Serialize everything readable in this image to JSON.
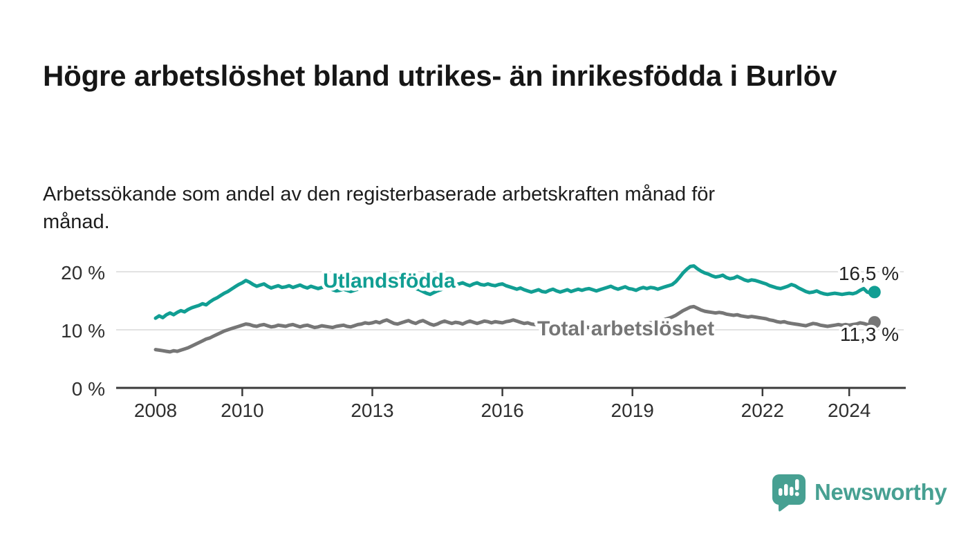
{
  "title": "Högre arbetslöshet bland utrikes- än inrikesfödda i Burlöv",
  "subtitle": "Arbetssökande som andel av den registerbaserade arbetskraften månad för månad.",
  "branding": {
    "logo_text": "Newsworthy"
  },
  "colors": {
    "utlandsfodda": "#119e93",
    "total": "#767676",
    "grid": "#d9d9d9",
    "axis": "#3a3a3a",
    "axis_text": "#2f2f2f",
    "value_text": "#222222",
    "brand": "#47a092"
  },
  "chart_data": {
    "type": "line",
    "title": "Högre arbetslöshet bland utrikes- än inrikesfödda i Burlöv",
    "subtitle": "Arbetssökande som andel av den registerbaserade arbetskraften månad för månad.",
    "x_unit": "month",
    "x_start": "2008-01",
    "x_end": "2024-08",
    "xticks": [
      2008,
      2010,
      2013,
      2016,
      2019,
      2022,
      2024
    ],
    "yticks": [
      0,
      10,
      20
    ],
    "ytick_labels": [
      "0 %",
      "10 %",
      "20 %"
    ],
    "ylim": [
      0,
      22.5
    ],
    "grid": "horizontal",
    "legend_position": "inline-labels",
    "series": [
      {
        "name": "Utlandsfödda",
        "color": "#119e93",
        "end_label": "16,5 %",
        "end_value": 16.5,
        "values": [
          12.0,
          12.4,
          12.1,
          12.6,
          12.9,
          12.6,
          13.0,
          13.3,
          13.1,
          13.5,
          13.8,
          14.0,
          14.2,
          14.5,
          14.3,
          14.8,
          15.2,
          15.5,
          15.9,
          16.3,
          16.6,
          17.0,
          17.4,
          17.8,
          18.1,
          18.5,
          18.2,
          17.8,
          17.5,
          17.7,
          17.9,
          17.5,
          17.2,
          17.4,
          17.6,
          17.3,
          17.4,
          17.6,
          17.3,
          17.5,
          17.7,
          17.4,
          17.2,
          17.5,
          17.3,
          17.1,
          17.3,
          17.5,
          17.2,
          16.9,
          16.7,
          16.8,
          17.0,
          16.8,
          16.6,
          16.8,
          17.0,
          17.2,
          17.4,
          17.3,
          17.4,
          17.2,
          17.3,
          17.5,
          17.3,
          17.2,
          17.4,
          17.3,
          17.1,
          17.2,
          17.4,
          17.3,
          17.1,
          16.9,
          16.6,
          16.3,
          16.1,
          16.4,
          16.7,
          16.9,
          17.2,
          17.4,
          17.6,
          17.8,
          17.9,
          18.1,
          17.8,
          17.6,
          17.9,
          18.1,
          17.8,
          17.7,
          17.9,
          17.7,
          17.6,
          17.8,
          17.9,
          17.6,
          17.4,
          17.2,
          17.0,
          17.2,
          16.9,
          16.7,
          16.5,
          16.7,
          16.9,
          16.6,
          16.5,
          16.8,
          17.0,
          16.7,
          16.5,
          16.7,
          16.9,
          16.6,
          16.8,
          17.0,
          16.8,
          17.0,
          17.1,
          16.9,
          16.7,
          16.9,
          17.1,
          17.3,
          17.5,
          17.2,
          17.0,
          17.2,
          17.4,
          17.1,
          17.0,
          16.8,
          17.1,
          17.3,
          17.1,
          17.3,
          17.2,
          17.0,
          17.2,
          17.4,
          17.6,
          17.8,
          18.3,
          19.0,
          19.8,
          20.4,
          20.9,
          21.0,
          20.5,
          20.1,
          19.8,
          19.6,
          19.3,
          19.1,
          19.2,
          19.4,
          19.0,
          18.8,
          18.9,
          19.2,
          18.9,
          18.6,
          18.4,
          18.6,
          18.5,
          18.3,
          18.1,
          17.9,
          17.6,
          17.4,
          17.2,
          17.1,
          17.3,
          17.5,
          17.8,
          17.6,
          17.2,
          16.9,
          16.6,
          16.4,
          16.5,
          16.7,
          16.4,
          16.2,
          16.1,
          16.2,
          16.3,
          16.2,
          16.1,
          16.2,
          16.3,
          16.2,
          16.4,
          16.8,
          17.1,
          16.5,
          16.3,
          16.5
        ]
      },
      {
        "name": "Total arbetslöshet",
        "color": "#767676",
        "end_label": "11,3 %",
        "end_value": 11.3,
        "values": [
          6.6,
          6.5,
          6.4,
          6.3,
          6.2,
          6.4,
          6.3,
          6.5,
          6.7,
          6.9,
          7.2,
          7.5,
          7.8,
          8.1,
          8.4,
          8.6,
          8.9,
          9.2,
          9.5,
          9.8,
          10.0,
          10.2,
          10.4,
          10.6,
          10.8,
          11.0,
          10.9,
          10.7,
          10.6,
          10.8,
          10.9,
          10.7,
          10.5,
          10.6,
          10.8,
          10.7,
          10.6,
          10.8,
          10.9,
          10.7,
          10.5,
          10.7,
          10.8,
          10.6,
          10.4,
          10.5,
          10.7,
          10.6,
          10.5,
          10.4,
          10.6,
          10.7,
          10.8,
          10.6,
          10.5,
          10.7,
          10.9,
          11.0,
          11.2,
          11.1,
          11.2,
          11.4,
          11.2,
          11.5,
          11.7,
          11.4,
          11.1,
          11.0,
          11.2,
          11.4,
          11.6,
          11.3,
          11.1,
          11.4,
          11.6,
          11.3,
          11.0,
          10.8,
          11.0,
          11.3,
          11.5,
          11.3,
          11.1,
          11.3,
          11.2,
          11.0,
          11.3,
          11.5,
          11.3,
          11.1,
          11.3,
          11.5,
          11.4,
          11.2,
          11.4,
          11.3,
          11.2,
          11.4,
          11.5,
          11.7,
          11.5,
          11.3,
          11.1,
          11.2,
          11.0,
          10.9,
          11.0,
          10.8,
          10.7,
          10.9,
          10.8,
          10.6,
          10.5,
          10.7,
          10.6,
          10.4,
          10.5,
          10.7,
          10.6,
          10.5,
          10.4,
          10.6,
          10.5,
          10.7,
          10.6,
          10.8,
          10.7,
          10.5,
          10.6,
          10.8,
          10.7,
          10.6,
          10.7,
          10.8,
          10.9,
          11.0,
          11.1,
          11.2,
          11.3,
          11.4,
          11.6,
          11.8,
          12.0,
          12.2,
          12.5,
          12.9,
          13.3,
          13.6,
          13.9,
          14.0,
          13.7,
          13.4,
          13.2,
          13.1,
          13.0,
          12.9,
          13.0,
          12.9,
          12.7,
          12.6,
          12.5,
          12.6,
          12.4,
          12.3,
          12.2,
          12.3,
          12.2,
          12.1,
          12.0,
          11.9,
          11.7,
          11.6,
          11.4,
          11.3,
          11.4,
          11.2,
          11.1,
          11.0,
          10.9,
          10.8,
          10.7,
          10.9,
          11.1,
          11.0,
          10.8,
          10.7,
          10.6,
          10.7,
          10.8,
          10.9,
          10.8,
          10.9,
          10.8,
          10.9,
          11.0,
          11.2,
          11.1,
          10.9,
          11.0,
          11.3
        ]
      }
    ]
  }
}
